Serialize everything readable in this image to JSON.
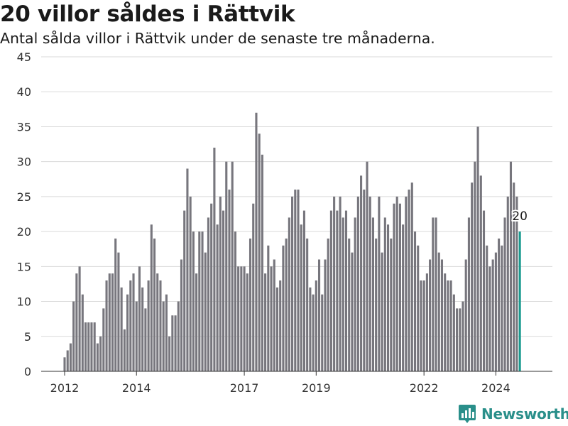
{
  "title": "20 villor såldes i Rättvik",
  "subtitle": "Antal sålda villor i Rättvik under de senaste tre månaderna.",
  "brand": {
    "name": "Newsworthy",
    "icon": "newsworthy-logo-icon"
  },
  "chart_data": {
    "type": "bar",
    "title": "20 villor såldes i Rättvik",
    "subtitle": "Antal sålda villor i Rättvik under de senaste tre månaderna.",
    "xlabel": "",
    "ylabel": "",
    "ylim": [
      0,
      45
    ],
    "yticks": [
      "0",
      "5",
      "10",
      "15",
      "20",
      "25",
      "30",
      "35",
      "40",
      "45"
    ],
    "xticks": [
      "2012",
      "2014",
      "2017",
      "2019",
      "2022",
      "2024"
    ],
    "grid": true,
    "bar_color": "#77767d",
    "highlight_color": "#1a9a8f",
    "highlight_label": "20",
    "first_period": "2012-01",
    "values": [
      2,
      3,
      4,
      10,
      14,
      15,
      11,
      7,
      7,
      7,
      7,
      4,
      5,
      9,
      13,
      14,
      14,
      19,
      17,
      12,
      6,
      11,
      13,
      14,
      10,
      15,
      12,
      9,
      13,
      21,
      19,
      14,
      13,
      10,
      11,
      5,
      8,
      8,
      10,
      16,
      23,
      29,
      25,
      20,
      14,
      20,
      20,
      17,
      22,
      24,
      32,
      21,
      25,
      23,
      30,
      26,
      30,
      20,
      15,
      15,
      15,
      14,
      19,
      24,
      37,
      34,
      31,
      14,
      18,
      15,
      16,
      12,
      13,
      18,
      19,
      22,
      25,
      26,
      26,
      21,
      23,
      19,
      12,
      11,
      13,
      16,
      11,
      16,
      19,
      23,
      25,
      23,
      25,
      22,
      23,
      19,
      17,
      22,
      25,
      28,
      26,
      30,
      25,
      22,
      19,
      25,
      17,
      22,
      21,
      19,
      24,
      25,
      24,
      21,
      25,
      26,
      27,
      20,
      18,
      13,
      13,
      14,
      16,
      22,
      22,
      17,
      16,
      14,
      13,
      13,
      11,
      9,
      9,
      10,
      16,
      22,
      27,
      30,
      35,
      28,
      23,
      18,
      15,
      16,
      17,
      19,
      18,
      22,
      25,
      30,
      27,
      25,
      20
    ]
  }
}
